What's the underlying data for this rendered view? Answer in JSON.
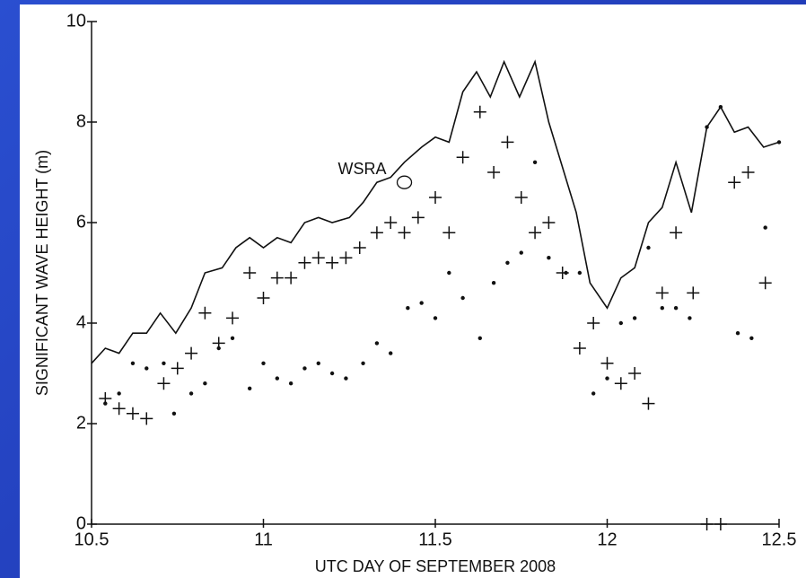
{
  "chart_data": {
    "type": "line",
    "x_label": "UTC DAY OF SEPTEMBER 2008",
    "y_label": "SIGNIFICANT WAVE HEIGHT (m)",
    "xlim": [
      10.5,
      12.5
    ],
    "ylim": [
      0,
      10
    ],
    "xticks": [
      10.5,
      11,
      11.5,
      12,
      12.5
    ],
    "yticks": [
      0,
      2,
      4,
      6,
      8,
      10
    ],
    "series": [
      {
        "style": "line",
        "color": "#111111",
        "x": [
          10.5,
          10.54,
          10.58,
          10.62,
          10.66,
          10.7,
          10.745,
          10.79,
          10.83,
          10.88,
          10.92,
          10.96,
          11.0,
          11.04,
          11.08,
          11.12,
          11.16,
          11.2,
          11.25,
          11.29,
          11.33,
          11.37,
          11.41,
          11.46,
          11.5,
          11.54,
          11.58,
          11.62,
          11.66,
          11.7,
          11.745,
          11.79,
          11.83,
          11.91,
          11.95,
          12.0,
          12.04,
          12.08,
          12.12,
          12.16,
          12.2,
          12.245,
          12.29,
          12.33,
          12.37,
          12.41,
          12.455,
          12.5
        ],
        "values": [
          3.2,
          3.5,
          3.4,
          3.8,
          3.8,
          4.2,
          3.8,
          4.3,
          5.0,
          5.1,
          5.5,
          5.7,
          5.5,
          5.7,
          5.6,
          6.0,
          6.1,
          6.0,
          6.1,
          6.4,
          6.8,
          6.9,
          7.2,
          7.5,
          7.7,
          7.6,
          8.6,
          9.0,
          8.5,
          9.2,
          8.5,
          9.2,
          8.0,
          6.2,
          4.8,
          4.3,
          4.9,
          5.1,
          6.0,
          6.3,
          7.2,
          6.2,
          7.9,
          8.3,
          7.8,
          7.9,
          7.5,
          7.6
        ]
      },
      {
        "style": "plus",
        "color": "#111111",
        "x": [
          10.54,
          10.58,
          10.62,
          10.66,
          10.71,
          10.75,
          10.79,
          10.83,
          10.87,
          10.91,
          10.96,
          11.0,
          11.04,
          11.08,
          11.12,
          11.16,
          11.2,
          11.24,
          11.28,
          11.33,
          11.37,
          11.41,
          11.45,
          11.5,
          11.54,
          11.58,
          11.63,
          11.67,
          11.71,
          11.75,
          11.79,
          11.83,
          11.87,
          11.92,
          11.96,
          12.0,
          12.04,
          12.08,
          12.12,
          12.16,
          12.2,
          12.25,
          12.29,
          12.33,
          12.37,
          12.41,
          12.46
        ],
        "values": [
          2.5,
          2.3,
          2.2,
          2.1,
          2.8,
          3.1,
          3.4,
          4.2,
          3.6,
          4.1,
          5.0,
          4.5,
          4.9,
          4.9,
          5.2,
          5.3,
          5.2,
          5.3,
          5.5,
          5.8,
          6.0,
          5.8,
          6.1,
          6.5,
          5.8,
          7.3,
          8.2,
          7.0,
          7.6,
          6.5,
          5.8,
          6.0,
          5.0,
          3.5,
          4.0,
          3.2,
          2.8,
          3.0,
          2.4,
          4.6,
          5.8,
          4.6,
          0,
          0,
          6.8,
          7.0,
          4.8
        ]
      },
      {
        "style": "dot",
        "color": "#111111",
        "x": [
          10.54,
          10.58,
          10.62,
          10.66,
          10.71,
          10.74,
          10.79,
          10.83,
          10.87,
          10.91,
          10.96,
          11.0,
          11.04,
          11.08,
          11.12,
          11.16,
          11.2,
          11.24,
          11.29,
          11.33,
          11.37,
          11.42,
          11.46,
          11.5,
          11.54,
          11.58,
          11.63,
          11.67,
          11.71,
          11.75,
          11.79,
          11.83,
          11.88,
          11.92,
          11.96,
          12.0,
          12.04,
          12.08,
          12.12,
          12.16,
          12.2,
          12.24,
          12.29,
          12.33,
          12.38,
          12.42,
          12.46,
          12.5
        ],
        "values": [
          2.4,
          2.6,
          3.2,
          3.1,
          3.2,
          2.2,
          2.6,
          2.8,
          3.5,
          3.7,
          2.7,
          3.2,
          2.9,
          2.8,
          3.1,
          3.2,
          3.0,
          2.9,
          3.2,
          3.6,
          3.4,
          4.3,
          4.4,
          4.1,
          5.0,
          4.5,
          3.7,
          4.8,
          5.2,
          5.4,
          7.2,
          5.3,
          5.0,
          5.0,
          2.6,
          2.9,
          4.0,
          4.1,
          5.5,
          4.3,
          4.3,
          4.1,
          7.9,
          8.3,
          3.8,
          3.7,
          5.9,
          7.6
        ]
      }
    ],
    "annotations": [
      {
        "text": "WSRA",
        "x": 11.41,
        "y": 6.8
      }
    ]
  }
}
